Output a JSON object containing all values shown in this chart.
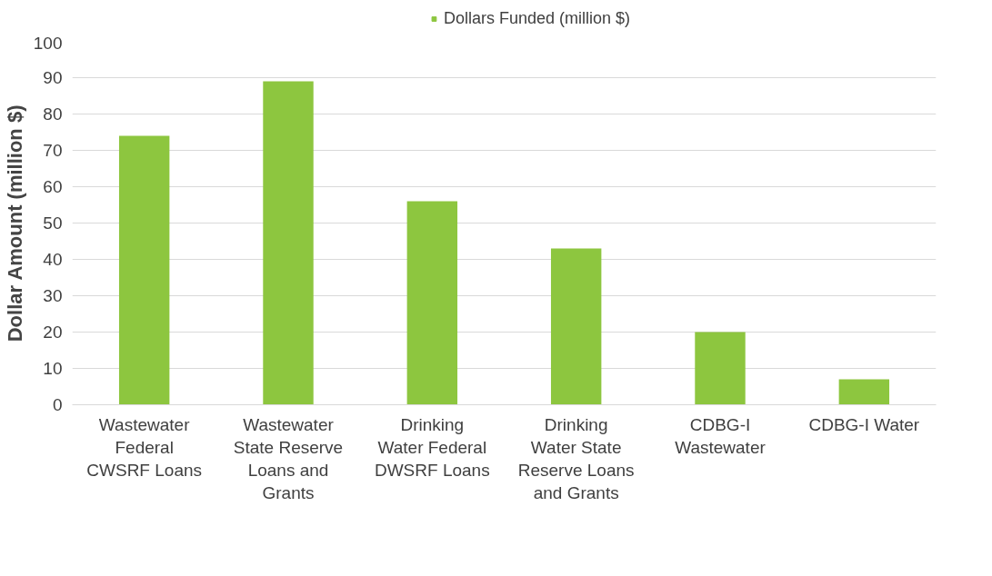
{
  "chart_data": {
    "type": "bar",
    "ylabel": "Dollar Amount (million $)",
    "categories": [
      "Wastewater\nFederal\nCWSRF Loans",
      "Wastewater\nState Reserve\nLoans and\nGrants",
      "Drinking\nWater Federal\nDWSRF Loans",
      "Drinking\nWater State\nReserve Loans\nand Grants",
      "CDBG-I\nWastewater",
      "CDBG-I Water"
    ],
    "series": [
      {
        "name": "Dollars Funded (million $)",
        "color": "#8dc63f",
        "values": [
          74,
          89,
          56,
          43,
          20,
          7
        ]
      }
    ],
    "ylim": [
      0,
      100
    ],
    "yticks": [
      0,
      10,
      20,
      30,
      40,
      50,
      60,
      70,
      80,
      90,
      100
    ],
    "grid": "y",
    "legend": "top"
  }
}
